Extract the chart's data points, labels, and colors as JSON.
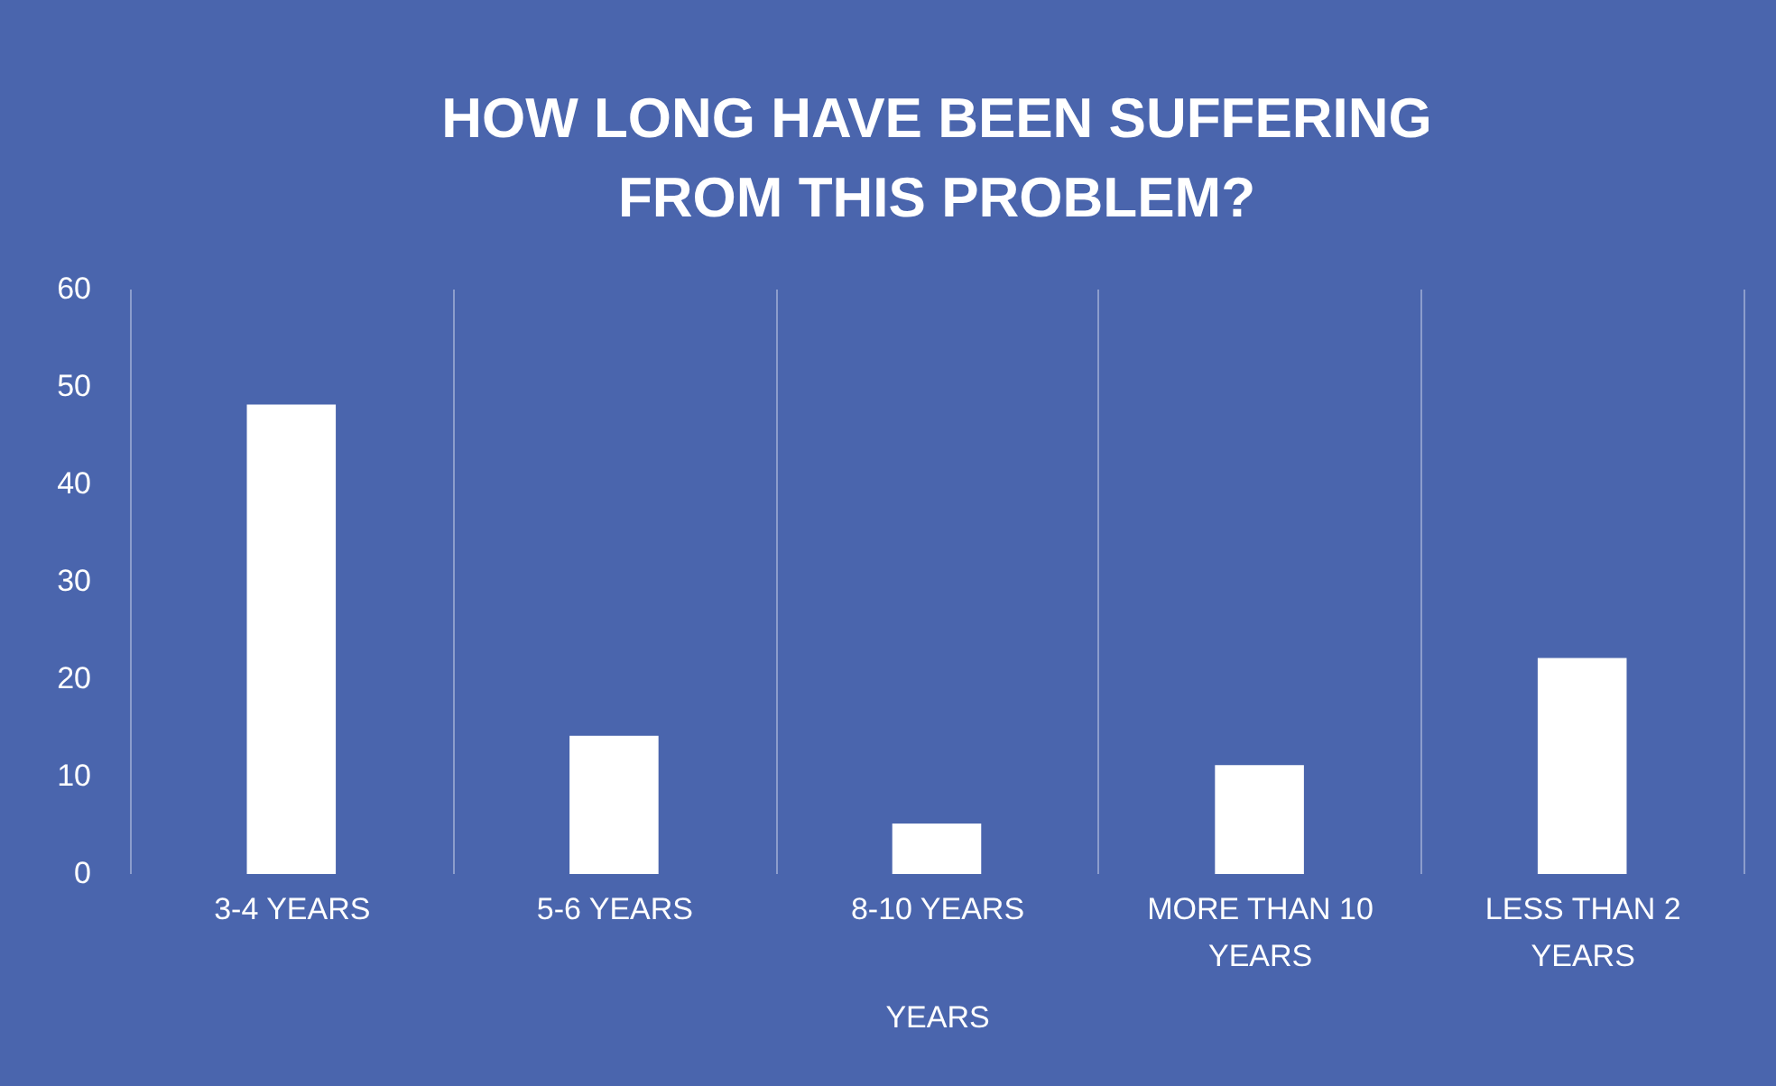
{
  "chart_data": {
    "type": "bar",
    "title": "HOW LONG HAVE BEEN SUFFERING FROM THIS PROBLEM?",
    "xlabel": "YEARS",
    "categories": [
      "3-4 YEARS",
      "5-6 YEARS",
      "8-10 YEARS",
      "MORE THAN 10 YEARS",
      "LESS THAN 2 YEARS"
    ],
    "values": [
      48,
      14,
      5,
      11,
      22
    ],
    "color": "#ffffff",
    "ylim": [
      0,
      60
    ],
    "yticks": [
      0,
      10,
      20,
      30,
      40,
      50,
      60
    ],
    "grid": "x"
  }
}
